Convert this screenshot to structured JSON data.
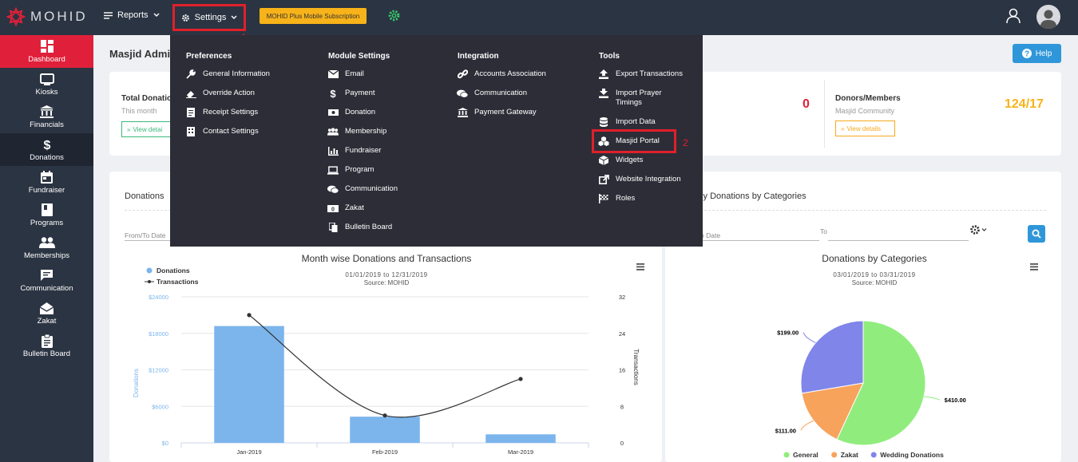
{
  "brand": {
    "name": "MOHID"
  },
  "topbar": {
    "reports_label": "Reports",
    "settings_label": "Settings",
    "settings_marker": "1",
    "subscription_label": "MOHID Plus Mobile Subscription"
  },
  "sidebar": {
    "items": [
      {
        "label": "Dashboard",
        "icon": "dashboard-icon"
      },
      {
        "label": "Kiosks",
        "icon": "kiosk-icon"
      },
      {
        "label": "Financials",
        "icon": "bank-icon"
      },
      {
        "label": "Donations",
        "icon": "dollar-icon"
      },
      {
        "label": "Fundraiser",
        "icon": "calendar-icon"
      },
      {
        "label": "Programs",
        "icon": "book-icon"
      },
      {
        "label": "Memberships",
        "icon": "users-icon"
      },
      {
        "label": "Communication",
        "icon": "chat-icon"
      },
      {
        "label": "Zakat",
        "icon": "envelope-icon"
      },
      {
        "label": "Bulletin Board",
        "icon": "clipboard-icon"
      }
    ]
  },
  "main": {
    "page_title": "Masjid Admi",
    "help_label": "Help",
    "stats": {
      "total_title": "Total Donatio",
      "total_sub": "This month",
      "total_view": "View detai",
      "middle_value": "0",
      "donors_title": "Donors/Members",
      "donors_sub": "Masjid Community",
      "donors_value": "124/17",
      "donors_view": "View details"
    },
    "left_card": {
      "title": "Donations",
      "from_to_label": "From/To Date"
    },
    "right_card": {
      "title": "hly Donations by Categories",
      "from_label": "o Date",
      "to_label": "To"
    }
  },
  "dropdown": {
    "preferences": {
      "heading": "Preferences",
      "items": [
        "General Information",
        "Override Action",
        "Receipt Settings",
        "Contact Settings"
      ]
    },
    "module_settings": {
      "heading": "Module Settings",
      "items": [
        "Email",
        "Payment",
        "Donation",
        "Membership",
        "Fundraiser",
        "Program",
        "Communication",
        "Zakat",
        "Bulletin Board"
      ]
    },
    "integration": {
      "heading": "Integration",
      "items": [
        "Accounts Association",
        "Communication",
        "Payment Gateway"
      ]
    },
    "tools": {
      "heading": "Tools",
      "items": [
        "Export Transactions",
        "Import Prayer",
        "Timings",
        "Import Data",
        "Masjid Portal",
        "Widgets",
        "Website Integration",
        "Roles"
      ],
      "portal_marker": "2"
    }
  },
  "chart_data": [
    {
      "type": "bar",
      "title": "Month wise Donations and Transactions",
      "subtitle": "01/01/2019 to 12/31/2019",
      "source": "Source: MOHID",
      "categories": [
        "Jan-2019",
        "Feb-2019",
        "Mar-2019"
      ],
      "series": [
        {
          "name": "Donations",
          "type": "bar",
          "values": [
            19200,
            4300,
            1400
          ],
          "color": "#7cb5ec",
          "axis": "left"
        },
        {
          "name": "Transactions",
          "type": "line",
          "values": [
            28,
            6,
            14
          ],
          "color": "#333333",
          "axis": "right"
        }
      ],
      "ylabel": "Donations",
      "y2label": "Transactions",
      "ylim": [
        0,
        24000
      ],
      "y2lim": [
        0,
        32
      ],
      "yticks": [
        "$0",
        "$6000",
        "$12000",
        "$18000",
        "$24000"
      ],
      "y2ticks": [
        "0",
        "8",
        "16",
        "24",
        "32"
      ],
      "legend": "top-left"
    },
    {
      "type": "pie",
      "title": "Donations by Categories",
      "subtitle": "03/01/2019 to 03/31/2019",
      "source": "Source: MOHID",
      "slices": [
        {
          "name": "General",
          "value": 410.0,
          "label": "$410.00",
          "color": "#90ed7d"
        },
        {
          "name": "Zakat",
          "value": 111.0,
          "label": "$111.00",
          "color": "#f7a35c"
        },
        {
          "name": "Wedding Donations",
          "value": 199.0,
          "label": "$199.00",
          "color": "#8085e9"
        }
      ],
      "legend": "bottom"
    }
  ]
}
